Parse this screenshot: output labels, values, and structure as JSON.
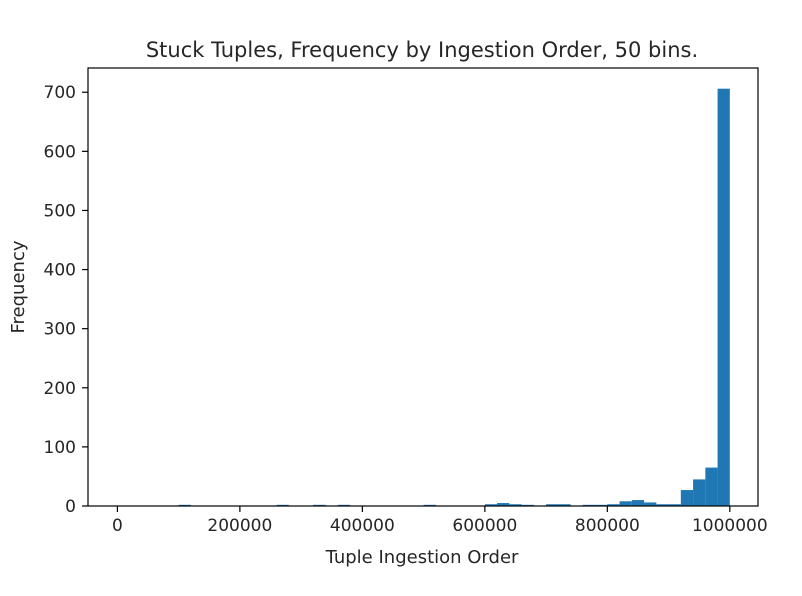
{
  "chart_data": {
    "type": "bar",
    "title": "Stuck Tuples, Frequency by Ingestion Order, 50 bins.",
    "xlabel": "Tuple Ingestion Order",
    "ylabel": "Frequency",
    "bar_color": "#1f77b4",
    "xlim": [
      -48000,
      1046000
    ],
    "ylim": [
      0,
      741
    ],
    "bin_start": 0,
    "bin_width": 20000,
    "xticks": [
      {
        "value": 0,
        "label": "0"
      },
      {
        "value": 200000,
        "label": "200000"
      },
      {
        "value": 400000,
        "label": "400000"
      },
      {
        "value": 600000,
        "label": "600000"
      },
      {
        "value": 800000,
        "label": "800000"
      },
      {
        "value": 1000000,
        "label": "1000000"
      }
    ],
    "yticks": [
      {
        "value": 0,
        "label": "0"
      },
      {
        "value": 100,
        "label": "100"
      },
      {
        "value": 200,
        "label": "200"
      },
      {
        "value": 300,
        "label": "300"
      },
      {
        "value": 400,
        "label": "400"
      },
      {
        "value": 500,
        "label": "500"
      },
      {
        "value": 600,
        "label": "600"
      },
      {
        "value": 700,
        "label": "700"
      }
    ],
    "values": [
      0,
      0,
      0,
      0,
      0,
      2,
      0,
      0,
      0,
      0,
      0,
      0,
      0,
      2,
      0,
      0,
      2,
      0,
      2,
      0,
      0,
      0,
      0,
      0,
      0,
      2,
      0,
      0,
      0,
      0,
      3,
      5,
      3,
      2,
      0,
      3,
      3,
      0,
      2,
      2,
      3,
      8,
      10,
      6,
      3,
      3,
      27,
      45,
      65,
      706
    ]
  }
}
